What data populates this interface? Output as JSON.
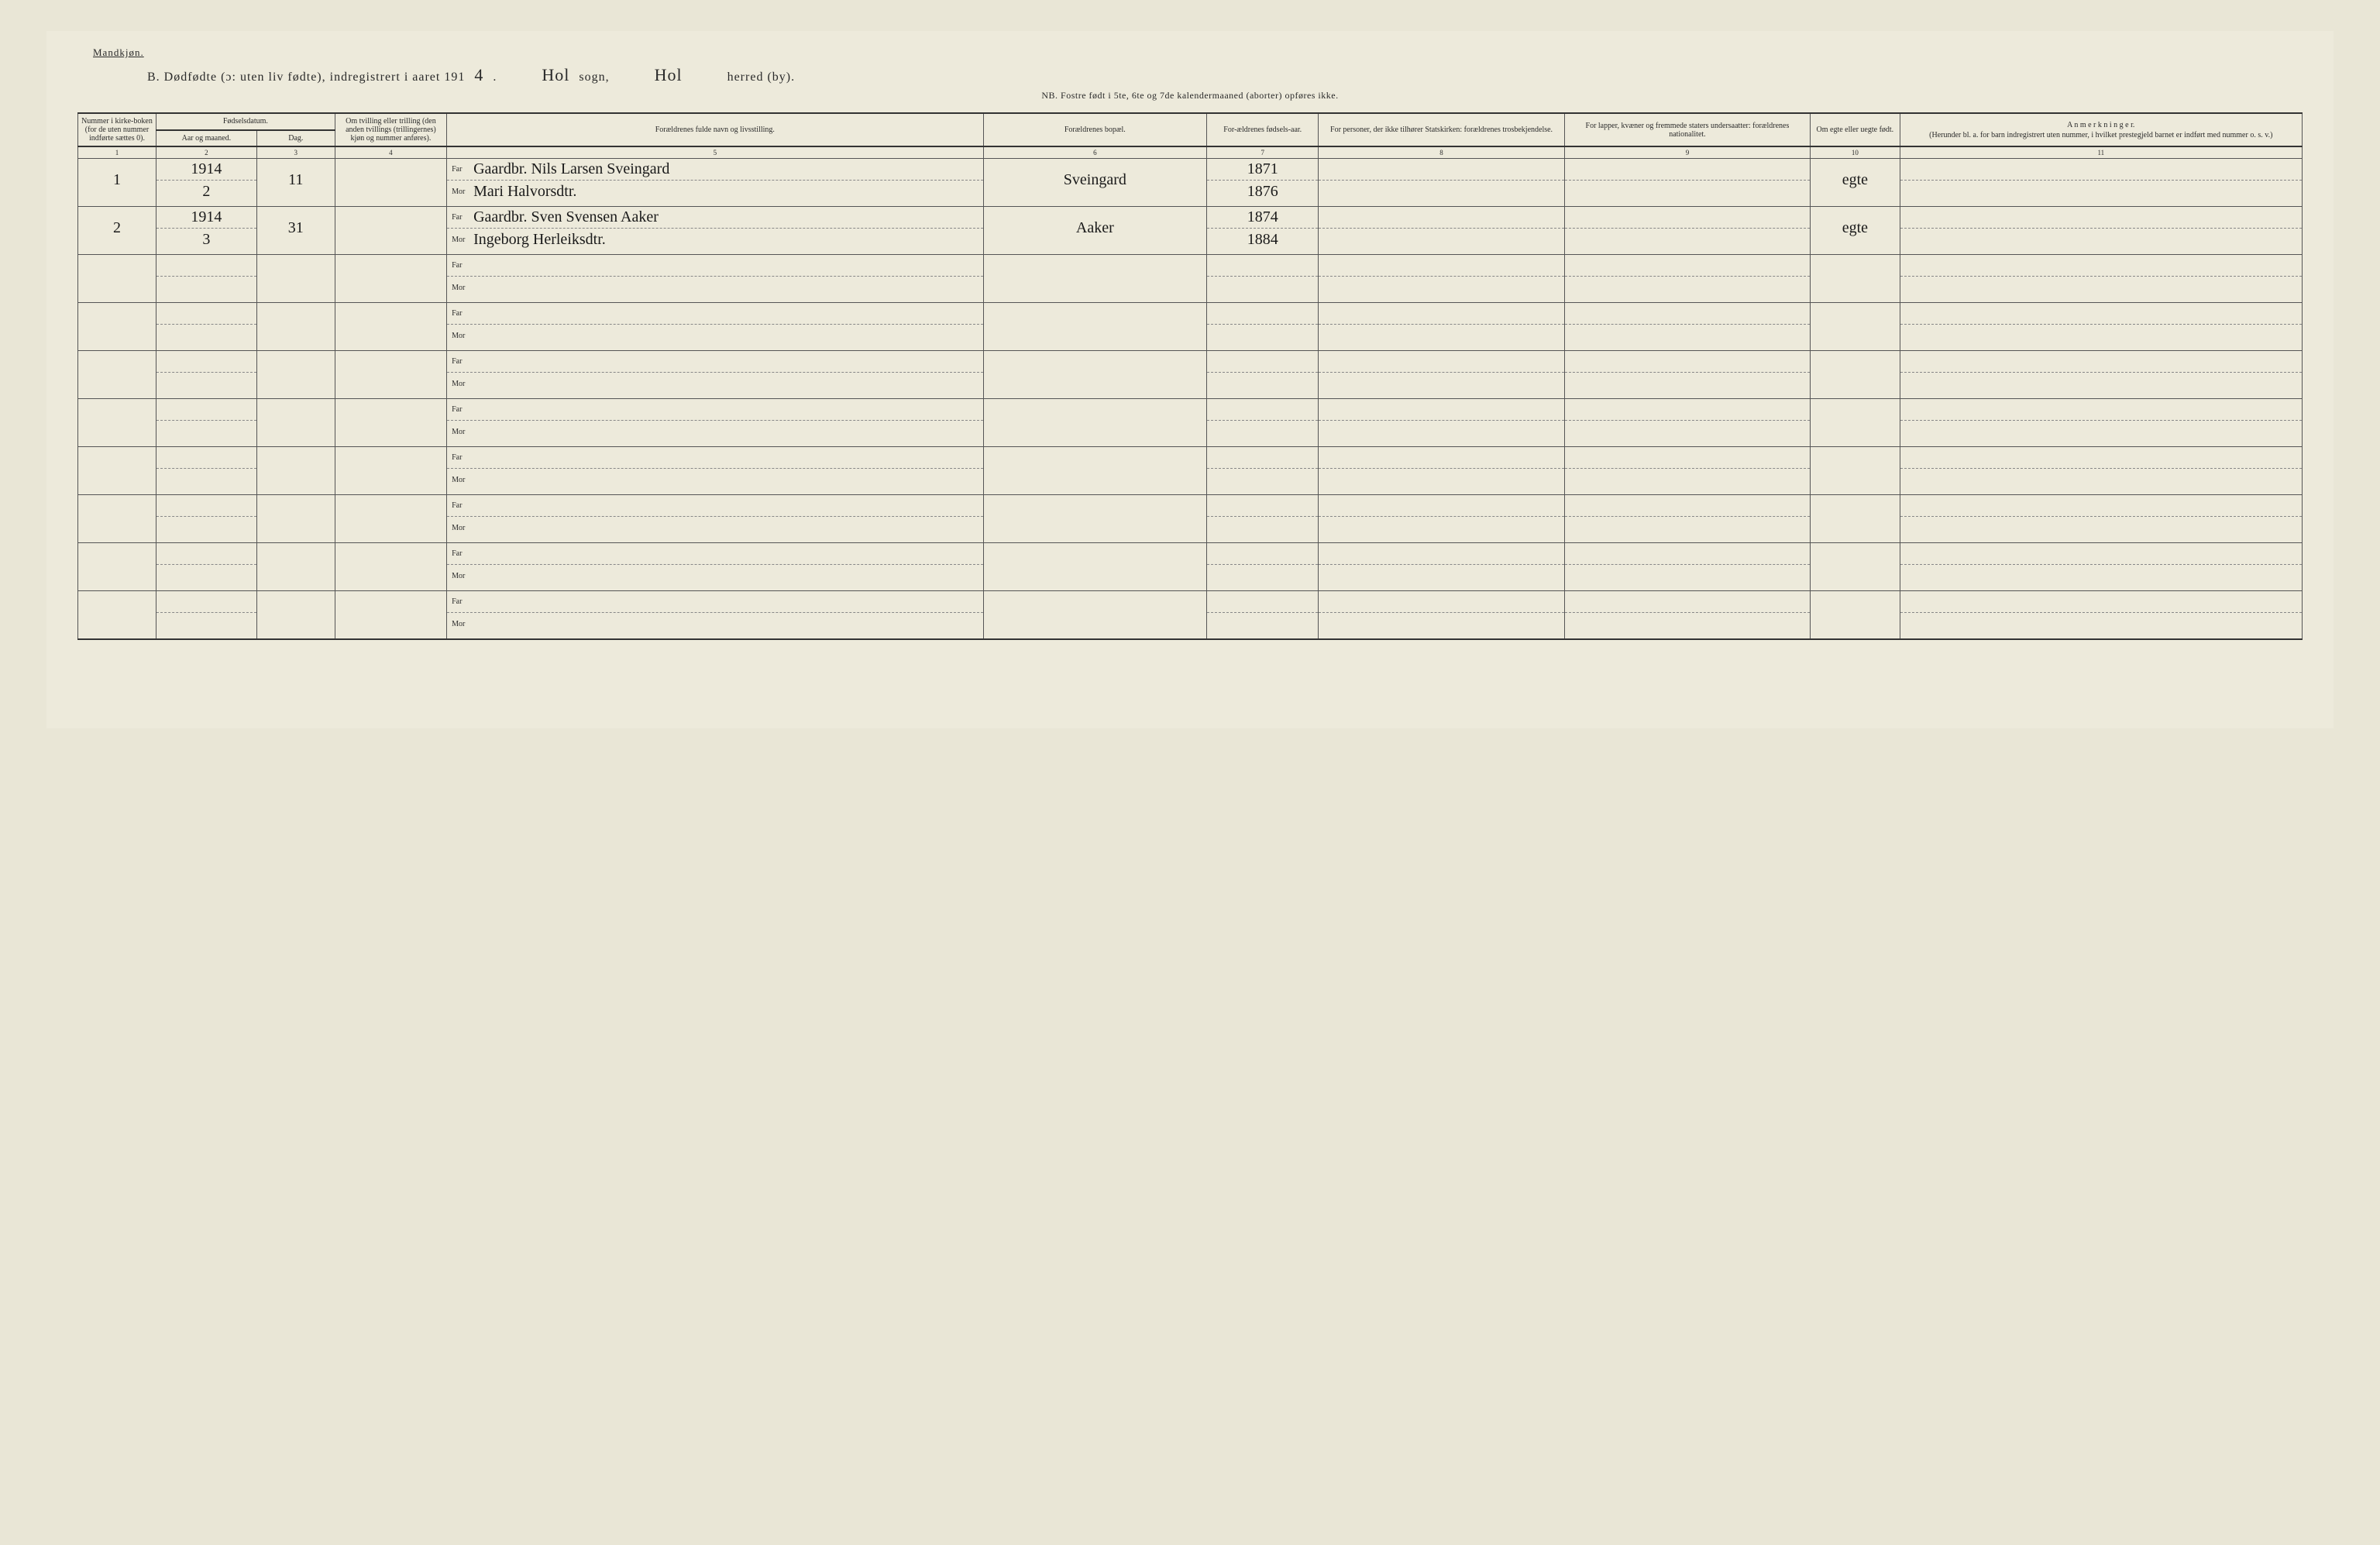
{
  "colors": {
    "page_bg": "#edeadb",
    "outer_bg": "#e9e6d6",
    "ink": "#2a2a2a",
    "rule": "#555555",
    "rule_heavy": "#333333"
  },
  "typography": {
    "body_family": "Times New Roman",
    "handwriting_family": "Brush Script MT",
    "header_fontsize_pt": 10,
    "title_fontsize_pt": 16,
    "hand_fontsize_pt": 22
  },
  "header": {
    "gender_label": "Mandkjøn.",
    "title_prefix": "B.   Dødfødte (ɔ: uten liv fødte), indregistrert i aaret 191",
    "year_suffix": "4",
    "sogn_label": "sogn,",
    "sogn_value": "Hol",
    "herred_label": "herred (by).",
    "herred_value": "Hol",
    "note": "NB.  Fostre født i 5te, 6te og 7de kalendermaaned (aborter) opføres ikke."
  },
  "columns": {
    "c1": "Nummer i kirke-boken (for de uten nummer indførte sættes 0).",
    "c2_group": "Fødselsdatum.",
    "c2": "Aar og maaned.",
    "c3": "Dag.",
    "c4": "Om tvilling eller trilling (den anden tvillings (trillingernes) kjøn og nummer anføres).",
    "c5": "Forældrenes fulde navn og livsstilling.",
    "c6": "Forældrenes bopæl.",
    "c7": "For-ældrenes fødsels-aar.",
    "c8": "For personer, der ikke tilhører Statskirken: forældrenes trosbekjendelse.",
    "c9": "For lapper, kvæner og fremmede staters undersaatter: forældrenes nationalitet.",
    "c10": "Om egte eller uegte født.",
    "c11_title": "A n m e r k n i n g e r.",
    "c11_sub": "(Herunder bl. a. for barn indregistrert uten nummer, i hvilket prestegjeld barnet er indført med nummer o. s. v.)",
    "idx": [
      "1",
      "2",
      "3",
      "4",
      "5",
      "6",
      "7",
      "8",
      "9",
      "10",
      "11"
    ],
    "far_label": "Far",
    "mor_label": "Mor"
  },
  "rows": [
    {
      "num": "1",
      "aar_maaned_top": "1914",
      "aar_maaned_bot": "2",
      "dag": "11",
      "tvilling": "",
      "far_navn": "Gaardbr. Nils Larsen Sveingard",
      "mor_navn": "Mari Halvorsdtr.",
      "bopael": "Sveingard",
      "far_aar": "1871",
      "mor_aar": "1876",
      "tros": "",
      "nat": "",
      "egte": "egte",
      "anm": ""
    },
    {
      "num": "2",
      "aar_maaned_top": "1914",
      "aar_maaned_bot": "3",
      "dag": "31",
      "tvilling": "",
      "far_navn": "Gaardbr. Sven Svensen Aaker",
      "mor_navn": "Ingeborg Herleiksdtr.",
      "bopael": "Aaker",
      "far_aar": "1874",
      "mor_aar": "1884",
      "tros": "",
      "nat": "",
      "egte": "egte",
      "anm": ""
    },
    {
      "num": "",
      "aar_maaned_top": "",
      "aar_maaned_bot": "",
      "dag": "",
      "tvilling": "",
      "far_navn": "",
      "mor_navn": "",
      "bopael": "",
      "far_aar": "",
      "mor_aar": "",
      "tros": "",
      "nat": "",
      "egte": "",
      "anm": ""
    },
    {
      "num": "",
      "aar_maaned_top": "",
      "aar_maaned_bot": "",
      "dag": "",
      "tvilling": "",
      "far_navn": "",
      "mor_navn": "",
      "bopael": "",
      "far_aar": "",
      "mor_aar": "",
      "tros": "",
      "nat": "",
      "egte": "",
      "anm": ""
    },
    {
      "num": "",
      "aar_maaned_top": "",
      "aar_maaned_bot": "",
      "dag": "",
      "tvilling": "",
      "far_navn": "",
      "mor_navn": "",
      "bopael": "",
      "far_aar": "",
      "mor_aar": "",
      "tros": "",
      "nat": "",
      "egte": "",
      "anm": ""
    },
    {
      "num": "",
      "aar_maaned_top": "",
      "aar_maaned_bot": "",
      "dag": "",
      "tvilling": "",
      "far_navn": "",
      "mor_navn": "",
      "bopael": "",
      "far_aar": "",
      "mor_aar": "",
      "tros": "",
      "nat": "",
      "egte": "",
      "anm": ""
    },
    {
      "num": "",
      "aar_maaned_top": "",
      "aar_maaned_bot": "",
      "dag": "",
      "tvilling": "",
      "far_navn": "",
      "mor_navn": "",
      "bopael": "",
      "far_aar": "",
      "mor_aar": "",
      "tros": "",
      "nat": "",
      "egte": "",
      "anm": ""
    },
    {
      "num": "",
      "aar_maaned_top": "",
      "aar_maaned_bot": "",
      "dag": "",
      "tvilling": "",
      "far_navn": "",
      "mor_navn": "",
      "bopael": "",
      "far_aar": "",
      "mor_aar": "",
      "tros": "",
      "nat": "",
      "egte": "",
      "anm": ""
    },
    {
      "num": "",
      "aar_maaned_top": "",
      "aar_maaned_bot": "",
      "dag": "",
      "tvilling": "",
      "far_navn": "",
      "mor_navn": "",
      "bopael": "",
      "far_aar": "",
      "mor_aar": "",
      "tros": "",
      "nat": "",
      "egte": "",
      "anm": ""
    },
    {
      "num": "",
      "aar_maaned_top": "",
      "aar_maaned_bot": "",
      "dag": "",
      "tvilling": "",
      "far_navn": "",
      "mor_navn": "",
      "bopael": "",
      "far_aar": "",
      "mor_aar": "",
      "tros": "",
      "nat": "",
      "egte": "",
      "anm": ""
    }
  ]
}
